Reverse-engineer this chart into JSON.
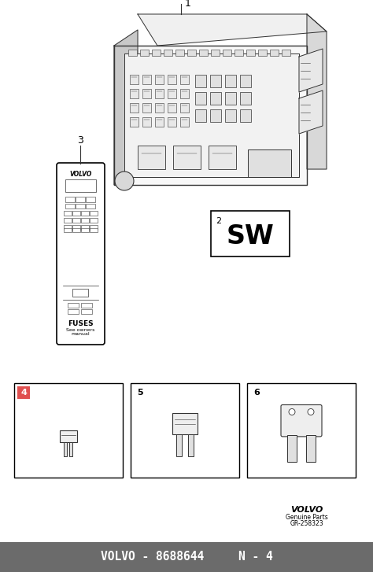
{
  "bg_color": "#ffffff",
  "footer_color": "#6b6b6b",
  "footer_text": "VOLVO - 8688644     N - 4",
  "footer_text_color": "#ffffff",
  "footer_fontsize": 11,
  "volvo_logo_text": "VOLVO",
  "genuine_parts_text": "Genuine Parts",
  "gr_text": "GR-258323",
  "sw_label": "SW",
  "sw_number": "2",
  "item1_number": "1",
  "item3_number": "3",
  "item4_number": "4",
  "item5_number": "5",
  "item6_number": "6",
  "fuses_text": "FUSES",
  "fuses_sub": "See owners\nmanual",
  "border_color": "#000000",
  "line_color": "#333333",
  "gray_fill": "#e0e0e0",
  "highlight_red": "#e05050"
}
